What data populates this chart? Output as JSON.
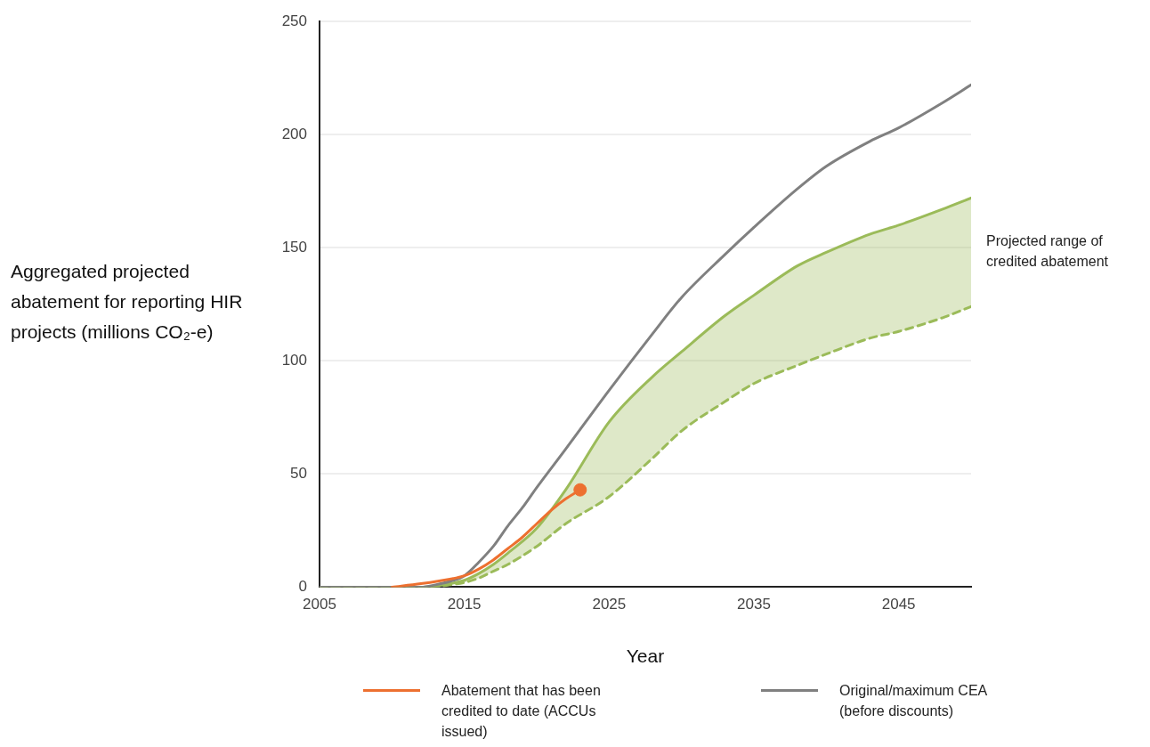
{
  "chart_data": {
    "type": "line",
    "xlabel": "Year",
    "ylabel": "Aggregated projected abatement for reporting HIR projects (millions CO₂-e)",
    "xlim": [
      2005,
      2050
    ],
    "xticks": [
      2005,
      2015,
      2025,
      2035,
      2045
    ],
    "ylim": [
      0,
      250
    ],
    "yticks": [
      0,
      50,
      100,
      150,
      200,
      250
    ],
    "grid": "y",
    "legend": "bottom",
    "line_style": "solid",
    "series": [
      {
        "name": "Abatement that has been credited to date (ACCUs issued)",
        "color": "#ed7030",
        "x": [
          2010,
          2012,
          2014,
          2015,
          2016,
          2017,
          2018,
          2019,
          2020,
          2021,
          2022,
          2023
        ],
        "values": [
          0,
          1.5,
          3.5,
          5,
          8,
          12,
          17,
          22,
          28,
          34,
          39,
          43
        ]
      },
      {
        "type": "scatter",
        "color": "#ed7030",
        "marker": "circle",
        "x": [
          2023
        ],
        "values": [
          43
        ]
      },
      {
        "name": "Original/maximum CEA (before discounts)",
        "color": "#808080",
        "x": [
          2005,
          2012,
          2013,
          2014,
          2015,
          2016,
          2017,
          2018,
          2019,
          2020,
          2022,
          2025,
          2028,
          2030,
          2033,
          2035,
          2038,
          2040,
          2043,
          2045,
          2048,
          2050
        ],
        "values": [
          0,
          0,
          1,
          2.5,
          5,
          11,
          18,
          27,
          35,
          44,
          61,
          87,
          112,
          128,
          147,
          159,
          176,
          186,
          197,
          203,
          214,
          222
        ]
      },
      {
        "name": "Projected range of credited abatement",
        "color": "#9bbb59",
        "x": [
          2005,
          2012,
          2013,
          2014,
          2015,
          2016,
          2017,
          2018,
          2020,
          2022,
          2025,
          2028,
          2030,
          2033,
          2035,
          2038,
          2040,
          2043,
          2045,
          2048,
          2050
        ],
        "values": [
          0,
          0,
          0.5,
          1.5,
          3,
          6,
          10,
          15,
          26,
          43,
          73,
          93,
          104,
          120,
          129,
          142,
          148,
          156,
          160,
          167,
          172
        ],
        "lower": [
          0,
          0,
          0,
          1,
          2,
          4,
          7,
          10,
          18,
          28,
          40,
          57,
          69,
          82,
          90,
          98,
          103,
          110,
          113,
          119,
          124
        ],
        "upper": [
          0,
          0,
          0.5,
          1.5,
          3,
          6,
          10,
          15,
          26,
          43,
          73,
          93,
          104,
          120,
          129,
          142,
          148,
          156,
          160,
          167,
          172
        ]
      },
      {
        "color": "#9bbb59",
        "line_style": "dashed",
        "x": [
          2005,
          2012,
          2013,
          2014,
          2015,
          2016,
          2017,
          2018,
          2020,
          2022,
          2025,
          2028,
          2030,
          2033,
          2035,
          2038,
          2040,
          2043,
          2045,
          2048,
          2050
        ],
        "values": [
          0,
          0,
          0,
          1,
          2,
          4,
          7,
          10,
          18,
          28,
          40,
          57,
          69,
          82,
          90,
          98,
          103,
          110,
          113,
          119,
          124
        ]
      }
    ]
  }
}
